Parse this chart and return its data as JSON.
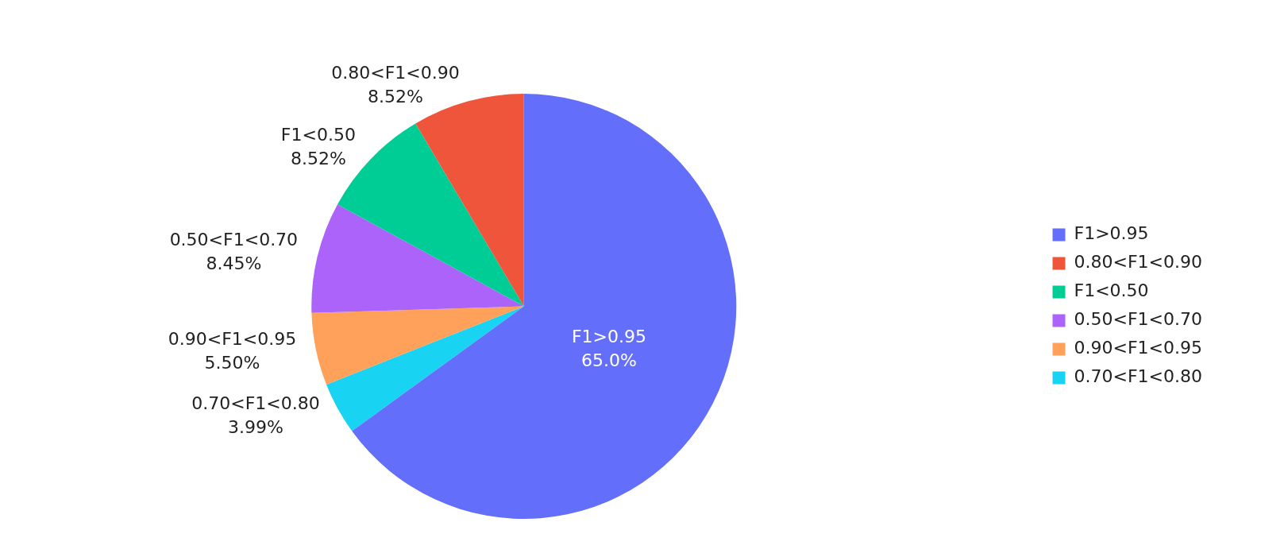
{
  "chart_data": {
    "type": "pie",
    "categories": [
      "F1>0.95",
      "0.80<F1<0.90",
      "F1<0.50",
      "0.50<F1<0.70",
      "0.90<F1<0.95",
      "0.70<F1<0.80"
    ],
    "values": [
      65.0,
      8.52,
      8.52,
      8.45,
      5.5,
      3.99
    ],
    "value_labels": [
      "65.0%",
      "8.52%",
      "8.52%",
      "8.45%",
      "5.50%",
      "3.99%"
    ],
    "colors": [
      "#636efa",
      "#ef553b",
      "#00cc96",
      "#ab63fa",
      "#ffa15a",
      "#19d3f3"
    ],
    "legend": "right"
  }
}
